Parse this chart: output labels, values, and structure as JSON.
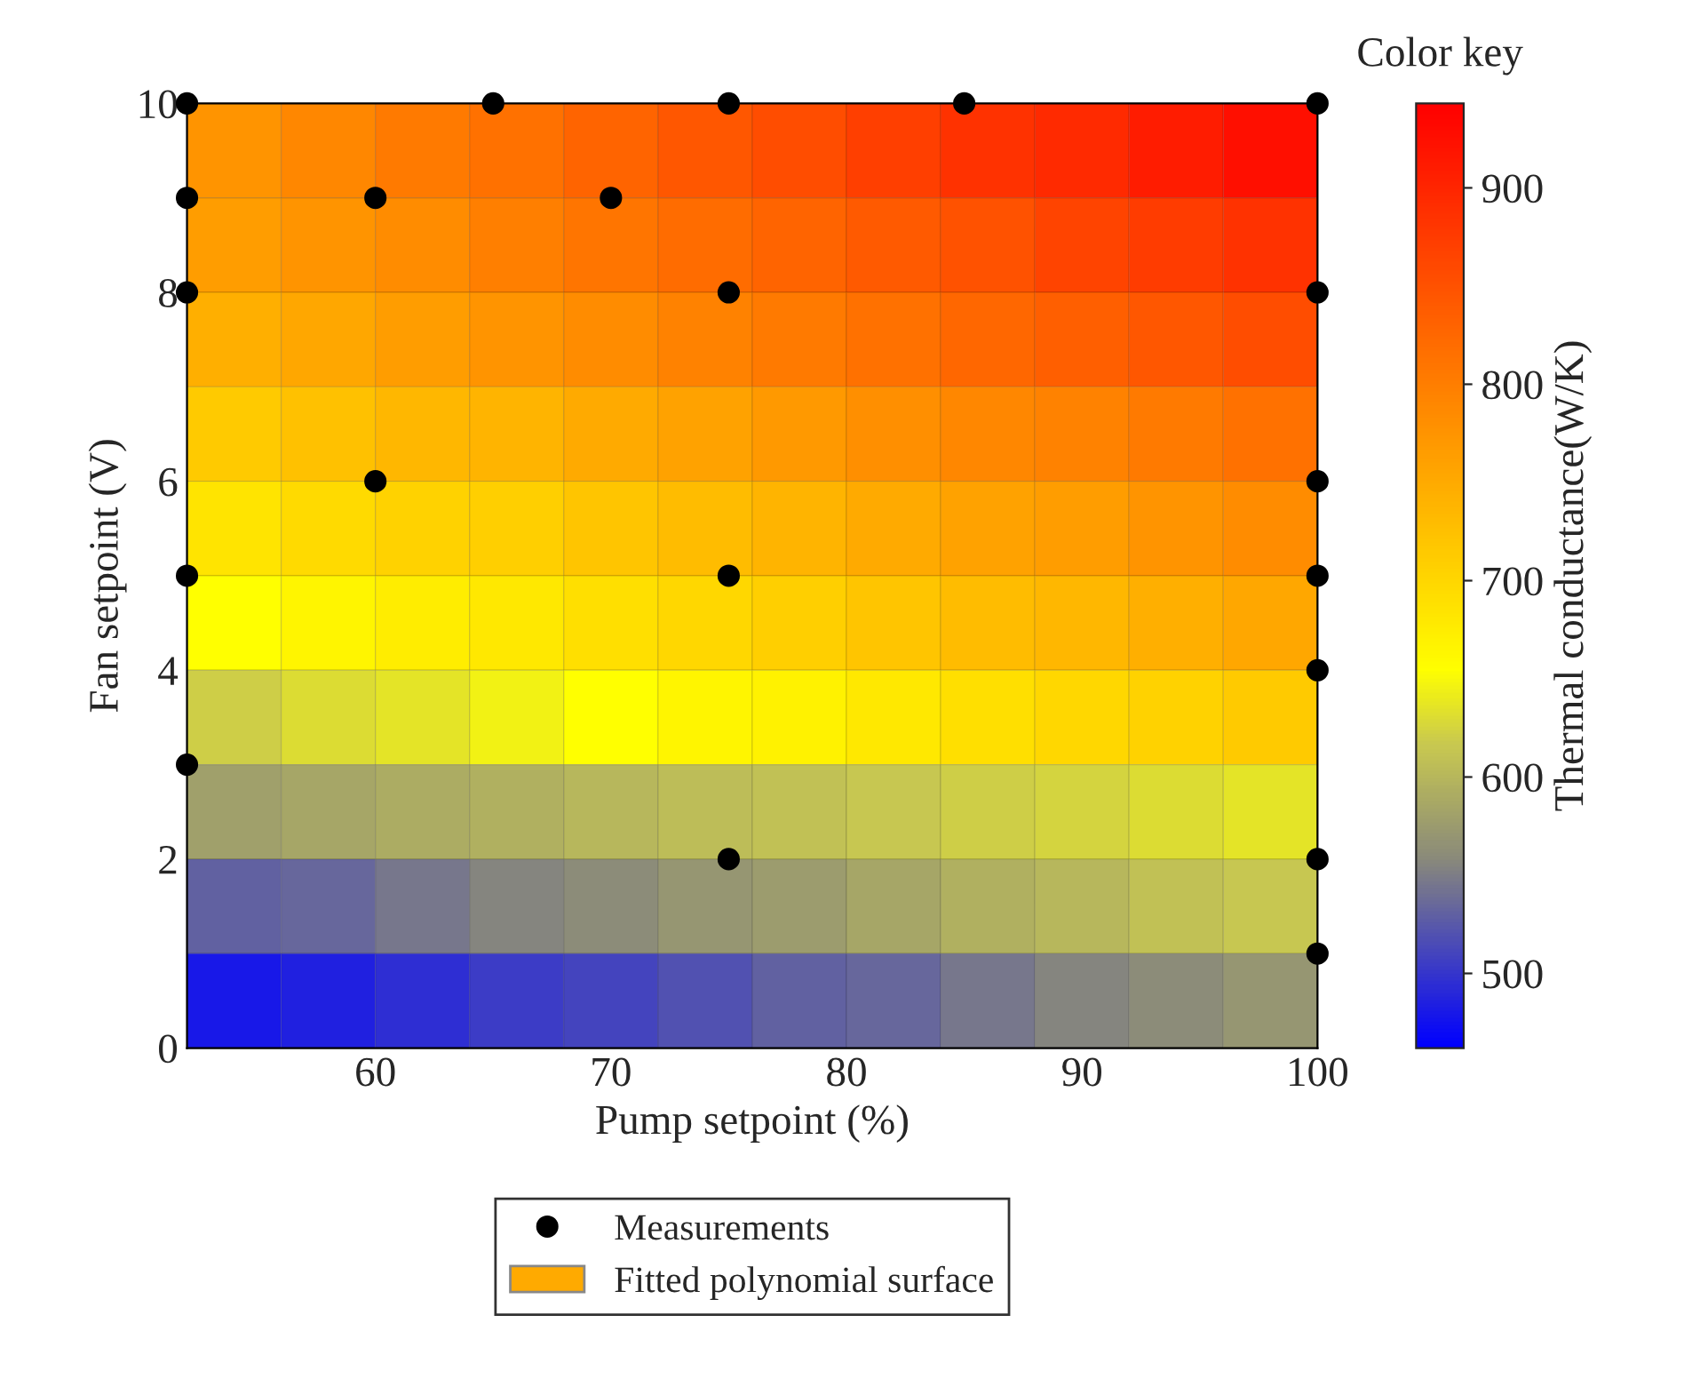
{
  "chart_data": {
    "type": "heatmap",
    "xlabel": "Pump setpoint (%)",
    "ylabel": "Fan setpoint (V)",
    "clabel": "Thermal conductance(W/K)",
    "annotations": [
      "Color key",
      "Fitted polynomial surface"
    ],
    "xlim": [
      52,
      100
    ],
    "ylim": [
      0,
      10
    ],
    "xticks": [
      60,
      70,
      80,
      90,
      100
    ],
    "yticks": [
      0,
      2,
      4,
      6,
      8,
      10
    ],
    "clim": [
      462,
      943
    ],
    "cticks": [
      500,
      600,
      700,
      800,
      900
    ],
    "grid": false,
    "legend": "bottom",
    "x": [
      54,
      58,
      62,
      66,
      70,
      74,
      78,
      82,
      86,
      90,
      94,
      98
    ],
    "cells": [
      [
        775,
        790,
        805,
        815,
        830,
        845,
        855,
        870,
        885,
        895,
        910,
        925
      ],
      [
        765,
        775,
        785,
        800,
        810,
        820,
        830,
        840,
        850,
        865,
        875,
        885
      ],
      [
        745,
        755,
        765,
        775,
        785,
        795,
        805,
        815,
        825,
        835,
        845,
        855
      ],
      [
        715,
        725,
        735,
        740,
        750,
        760,
        770,
        780,
        790,
        795,
        805,
        815
      ],
      [
        685,
        695,
        705,
        710,
        720,
        730,
        740,
        750,
        760,
        765,
        775,
        785
      ],
      [
        655,
        665,
        675,
        680,
        690,
        700,
        710,
        720,
        730,
        735,
        745,
        755
      ],
      [
        620,
        630,
        635,
        645,
        655,
        665,
        670,
        680,
        690,
        700,
        705,
        715
      ],
      [
        580,
        585,
        590,
        595,
        600,
        605,
        610,
        615,
        620,
        625,
        630,
        635
      ],
      [
        530,
        535,
        545,
        555,
        560,
        570,
        575,
        585,
        595,
        600,
        610,
        615
      ],
      [
        480,
        485,
        495,
        505,
        510,
        520,
        530,
        535,
        545,
        555,
        560,
        570
      ]
    ],
    "series": [
      {
        "type": "scatter",
        "name": "Measurements",
        "color": "#000000",
        "marker": "circle",
        "x": [
          52,
          65,
          75,
          85,
          100,
          52,
          60,
          70,
          52,
          75,
          100,
          60,
          100,
          52,
          75,
          100,
          100,
          52,
          75,
          100,
          100
        ],
        "values": [
          10,
          10,
          10,
          10,
          10,
          9,
          9,
          9,
          8,
          8,
          8,
          6,
          6,
          5,
          5,
          5,
          4,
          3,
          2,
          2,
          1
        ]
      }
    ]
  }
}
